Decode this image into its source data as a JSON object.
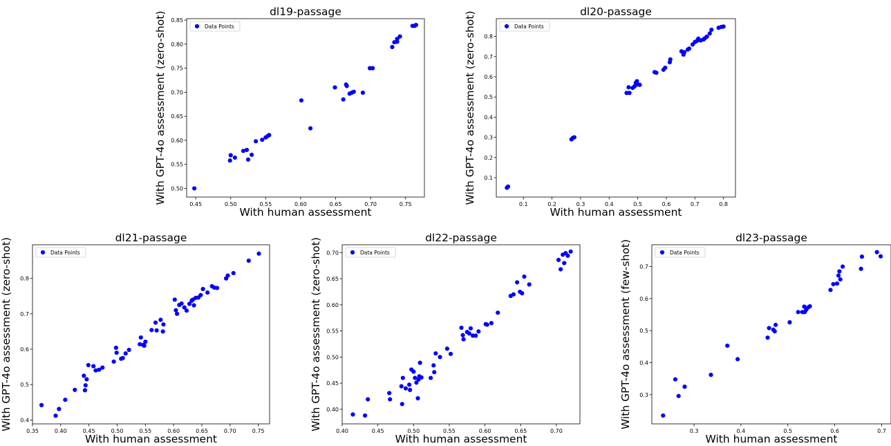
{
  "chart_data": [
    {
      "type": "scatter",
      "title": "dl19-passage",
      "xlabel": "With human assessment",
      "ylabel": "With GPT-4o assessment (zero-shot)",
      "legend": "Data Points",
      "legend_position": "top-left",
      "xlim": [
        0.437,
        0.777
      ],
      "ylim": [
        0.482,
        0.853
      ],
      "xticks": [
        "0.45",
        "0.50",
        "0.55",
        "0.60",
        "0.65",
        "0.70",
        "0.75"
      ],
      "yticks": [
        "0.50",
        "0.55",
        "0.60",
        "0.65",
        "0.70",
        "0.75",
        "0.80",
        "0.85"
      ],
      "series": [
        {
          "name": "Data Points",
          "color": "#0000ff",
          "points": [
            [
              0.448,
              0.5
            ],
            [
              0.499,
              0.558
            ],
            [
              0.5,
              0.569
            ],
            [
              0.506,
              0.564
            ],
            [
              0.518,
              0.578
            ],
            [
              0.523,
              0.58
            ],
            [
              0.525,
              0.56
            ],
            [
              0.53,
              0.57
            ],
            [
              0.536,
              0.598
            ],
            [
              0.545,
              0.601
            ],
            [
              0.55,
              0.606
            ],
            [
              0.553,
              0.609
            ],
            [
              0.555,
              0.611
            ],
            [
              0.601,
              0.683
            ],
            [
              0.614,
              0.625
            ],
            [
              0.649,
              0.71
            ],
            [
              0.661,
              0.685
            ],
            [
              0.665,
              0.716
            ],
            [
              0.666,
              0.713
            ],
            [
              0.67,
              0.697
            ],
            [
              0.673,
              0.699
            ],
            [
              0.676,
              0.701
            ],
            [
              0.689,
              0.699
            ],
            [
              0.699,
              0.75
            ],
            [
              0.703,
              0.75
            ],
            [
              0.731,
              0.794
            ],
            [
              0.734,
              0.804
            ],
            [
              0.738,
              0.811
            ],
            [
              0.738,
              0.805
            ],
            [
              0.742,
              0.816
            ],
            [
              0.76,
              0.838
            ],
            [
              0.763,
              0.838
            ],
            [
              0.765,
              0.84
            ]
          ]
        }
      ]
    },
    {
      "type": "scatter",
      "title": "dl20-passage",
      "xlabel": "With human assessment",
      "ylabel": "With GPT-4o assessment (zero-shot)",
      "legend": "Data Points",
      "legend_position": "top-left",
      "xlim": [
        0.005,
        0.842
      ],
      "ylim": [
        0.004,
        0.888
      ],
      "xticks": [
        "0.1",
        "0.2",
        "0.3",
        "0.4",
        "0.5",
        "0.6",
        "0.7",
        "0.8"
      ],
      "yticks": [
        "0.1",
        "0.2",
        "0.3",
        "0.4",
        "0.5",
        "0.6",
        "0.7",
        "0.8"
      ],
      "series": [
        {
          "name": "Data Points",
          "color": "#0000ff",
          "points": [
            [
              0.042,
              0.05
            ],
            [
              0.046,
              0.056
            ],
            [
              0.268,
              0.29
            ],
            [
              0.273,
              0.297
            ],
            [
              0.278,
              0.3
            ],
            [
              0.461,
              0.52
            ],
            [
              0.468,
              0.548
            ],
            [
              0.471,
              0.52
            ],
            [
              0.482,
              0.545
            ],
            [
              0.489,
              0.553
            ],
            [
              0.493,
              0.57
            ],
            [
              0.497,
              0.578
            ],
            [
              0.5,
              0.562
            ],
            [
              0.507,
              0.56
            ],
            [
              0.559,
              0.623
            ],
            [
              0.565,
              0.62
            ],
            [
              0.59,
              0.635
            ],
            [
              0.596,
              0.645
            ],
            [
              0.612,
              0.672
            ],
            [
              0.614,
              0.686
            ],
            [
              0.653,
              0.726
            ],
            [
              0.66,
              0.71
            ],
            [
              0.663,
              0.722
            ],
            [
              0.675,
              0.735
            ],
            [
              0.68,
              0.74
            ],
            [
              0.692,
              0.76
            ],
            [
              0.7,
              0.772
            ],
            [
              0.707,
              0.778
            ],
            [
              0.712,
              0.789
            ],
            [
              0.72,
              0.78
            ],
            [
              0.73,
              0.785
            ],
            [
              0.735,
              0.791
            ],
            [
              0.742,
              0.799
            ],
            [
              0.752,
              0.815
            ],
            [
              0.758,
              0.833
            ],
            [
              0.783,
              0.843
            ],
            [
              0.793,
              0.847
            ],
            [
              0.8,
              0.849
            ]
          ]
        }
      ]
    },
    {
      "type": "scatter",
      "title": "dl21-passage",
      "xlabel": "With human assessment",
      "ylabel": "With GPT-4o assessment (zero-shot)",
      "legend": "Data Points",
      "legend_position": "top-left",
      "xlim": [
        0.35,
        0.77
      ],
      "ylim": [
        0.389,
        0.895
      ],
      "xticks": [
        "0.35",
        "0.40",
        "0.45",
        "0.50",
        "0.55",
        "0.60",
        "0.65",
        "0.70",
        "0.75"
      ],
      "yticks": [
        "0.4",
        "0.5",
        "0.6",
        "0.7",
        "0.8"
      ],
      "series": [
        {
          "name": "Data Points",
          "color": "#0000ff",
          "points": [
            [
              0.366,
              0.442
            ],
            [
              0.391,
              0.412
            ],
            [
              0.397,
              0.431
            ],
            [
              0.408,
              0.457
            ],
            [
              0.425,
              0.485
            ],
            [
              0.441,
              0.525
            ],
            [
              0.443,
              0.484
            ],
            [
              0.444,
              0.498
            ],
            [
              0.446,
              0.515
            ],
            [
              0.449,
              0.555
            ],
            [
              0.458,
              0.552
            ],
            [
              0.462,
              0.54
            ],
            [
              0.468,
              0.542
            ],
            [
              0.474,
              0.548
            ],
            [
              0.494,
              0.565
            ],
            [
              0.498,
              0.604
            ],
            [
              0.499,
              0.59
            ],
            [
              0.507,
              0.573
            ],
            [
              0.51,
              0.575
            ],
            [
              0.515,
              0.588
            ],
            [
              0.521,
              0.598
            ],
            [
              0.54,
              0.614
            ],
            [
              0.542,
              0.633
            ],
            [
              0.546,
              0.612
            ],
            [
              0.548,
              0.61
            ],
            [
              0.55,
              0.621
            ],
            [
              0.561,
              0.654
            ],
            [
              0.568,
              0.675
            ],
            [
              0.57,
              0.653
            ],
            [
              0.577,
              0.683
            ],
            [
              0.581,
              0.65
            ],
            [
              0.582,
              0.67
            ],
            [
              0.602,
              0.74
            ],
            [
              0.604,
              0.71
            ],
            [
              0.606,
              0.7
            ],
            [
              0.61,
              0.725
            ],
            [
              0.614,
              0.729
            ],
            [
              0.619,
              0.718
            ],
            [
              0.623,
              0.709
            ],
            [
              0.628,
              0.728
            ],
            [
              0.632,
              0.737
            ],
            [
              0.634,
              0.74
            ],
            [
              0.636,
              0.724
            ],
            [
              0.639,
              0.745
            ],
            [
              0.644,
              0.746
            ],
            [
              0.648,
              0.753
            ],
            [
              0.652,
              0.77
            ],
            [
              0.66,
              0.76
            ],
            [
              0.668,
              0.778
            ],
            [
              0.672,
              0.774
            ],
            [
              0.677,
              0.773
            ],
            [
              0.693,
              0.8
            ],
            [
              0.696,
              0.808
            ],
            [
              0.706,
              0.815
            ],
            [
              0.733,
              0.85
            ],
            [
              0.751,
              0.87
            ]
          ]
        }
      ]
    },
    {
      "type": "scatter",
      "title": "dl22-passage",
      "xlabel": "With human assessment",
      "ylabel": "With GPT-4o assessment (zero-shot)",
      "legend": "Data Points",
      "legend_position": "top-left",
      "xlim": [
        0.4,
        0.733
      ],
      "ylim": [
        0.372,
        0.715
      ],
      "xticks": [
        "0.40",
        "0.45",
        "0.50",
        "0.55",
        "0.60",
        "0.65",
        "0.70"
      ],
      "yticks": [
        "0.40",
        "0.45",
        "0.50",
        "0.55",
        "0.60",
        "0.65",
        "0.70"
      ],
      "series": [
        {
          "name": "Data Points",
          "color": "#0000ff",
          "points": [
            [
              0.415,
              0.39
            ],
            [
              0.432,
              0.388
            ],
            [
              0.436,
              0.419
            ],
            [
              0.466,
              0.431
            ],
            [
              0.467,
              0.419
            ],
            [
              0.483,
              0.444
            ],
            [
              0.484,
              0.41
            ],
            [
              0.485,
              0.46
            ],
            [
              0.489,
              0.44
            ],
            [
              0.494,
              0.447
            ],
            [
              0.495,
              0.437
            ],
            [
              0.497,
              0.476
            ],
            [
              0.5,
              0.472
            ],
            [
              0.502,
              0.46
            ],
            [
              0.504,
              0.451
            ],
            [
              0.506,
              0.421
            ],
            [
              0.507,
              0.457
            ],
            [
              0.508,
              0.463
            ],
            [
              0.509,
              0.489
            ],
            [
              0.511,
              0.461
            ],
            [
              0.524,
              0.46
            ],
            [
              0.528,
              0.484
            ],
            [
              0.529,
              0.471
            ],
            [
              0.531,
              0.507
            ],
            [
              0.537,
              0.5
            ],
            [
              0.547,
              0.516
            ],
            [
              0.552,
              0.506
            ],
            [
              0.567,
              0.556
            ],
            [
              0.569,
              0.542
            ],
            [
              0.57,
              0.534
            ],
            [
              0.575,
              0.548
            ],
            [
              0.578,
              0.545
            ],
            [
              0.58,
              0.555
            ],
            [
              0.583,
              0.541
            ],
            [
              0.587,
              0.541
            ],
            [
              0.591,
              0.549
            ],
            [
              0.601,
              0.563
            ],
            [
              0.603,
              0.562
            ],
            [
              0.609,
              0.565
            ],
            [
              0.618,
              0.585
            ],
            [
              0.636,
              0.617
            ],
            [
              0.64,
              0.62
            ],
            [
              0.645,
              0.643
            ],
            [
              0.649,
              0.625
            ],
            [
              0.652,
              0.622
            ],
            [
              0.655,
              0.654
            ],
            [
              0.662,
              0.639
            ],
            [
              0.703,
              0.686
            ],
            [
              0.706,
              0.668
            ],
            [
              0.709,
              0.696
            ],
            [
              0.711,
              0.68
            ],
            [
              0.713,
              0.699
            ],
            [
              0.716,
              0.694
            ],
            [
              0.72,
              0.702
            ]
          ]
        }
      ]
    },
    {
      "type": "scatter",
      "title": "dl23-passage",
      "xlabel": "With human assessment",
      "ylabel": "With GPT-4o assessment (few-shot)",
      "legend": "Data Points",
      "legend_position": "top-left",
      "xlim": [
        0.21,
        0.72
      ],
      "ylim": [
        0.209,
        0.768
      ],
      "xticks": [
        "0.3",
        "0.4",
        "0.5",
        "0.6",
        "0.7"
      ],
      "yticks": [
        "0.3",
        "0.4",
        "0.5",
        "0.6",
        "0.7"
      ],
      "series": [
        {
          "name": "Data Points",
          "color": "#0000ff",
          "points": [
            [
              0.234,
              0.235
            ],
            [
              0.26,
              0.348
            ],
            [
              0.267,
              0.296
            ],
            [
              0.28,
              0.325
            ],
            [
              0.336,
              0.362
            ],
            [
              0.371,
              0.453
            ],
            [
              0.393,
              0.411
            ],
            [
              0.457,
              0.478
            ],
            [
              0.46,
              0.508
            ],
            [
              0.469,
              0.503
            ],
            [
              0.472,
              0.498
            ],
            [
              0.474,
              0.518
            ],
            [
              0.504,
              0.526
            ],
            [
              0.522,
              0.558
            ],
            [
              0.531,
              0.558
            ],
            [
              0.535,
              0.575
            ],
            [
              0.536,
              0.558
            ],
            [
              0.539,
              0.565
            ],
            [
              0.543,
              0.572
            ],
            [
              0.547,
              0.576
            ],
            [
              0.591,
              0.627
            ],
            [
              0.597,
              0.645
            ],
            [
              0.605,
              0.647
            ],
            [
              0.608,
              0.672
            ],
            [
              0.61,
              0.685
            ],
            [
              0.612,
              0.66
            ],
            [
              0.617,
              0.7
            ],
            [
              0.656,
              0.693
            ],
            [
              0.658,
              0.731
            ],
            [
              0.69,
              0.745
            ],
            [
              0.698,
              0.732
            ]
          ]
        }
      ]
    }
  ]
}
